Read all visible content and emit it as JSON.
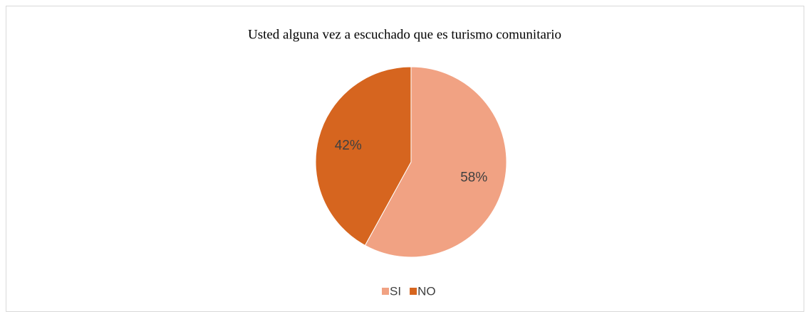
{
  "chart_data": {
    "type": "pie",
    "title": "Usted alguna vez a escuchado que es turismo comunitario",
    "categories": [
      "SI",
      "NO"
    ],
    "values": [
      58,
      42
    ],
    "value_labels": [
      "58%",
      "42%"
    ],
    "colors": [
      "#f1a283",
      "#d6651f"
    ],
    "legend": "bottom"
  }
}
